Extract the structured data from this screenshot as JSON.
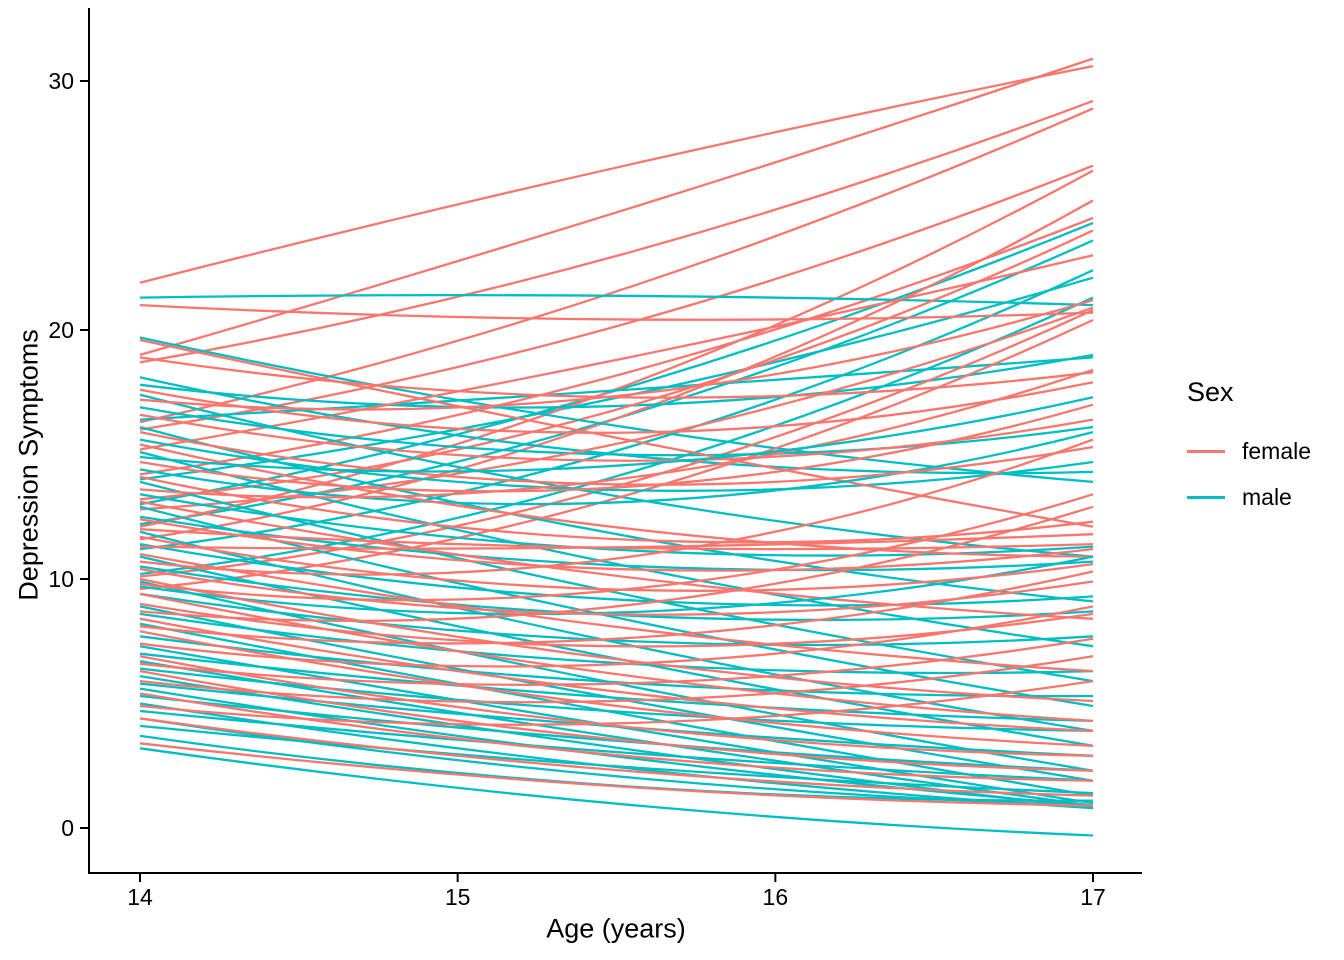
{
  "chart_data": {
    "type": "line",
    "title": "",
    "xlabel": "Age (years)",
    "ylabel": "Depression Symptoms",
    "x_ticks": [
      14,
      15,
      16,
      17
    ],
    "x_tick_labels": [
      "14",
      "15",
      "16",
      "17"
    ],
    "y_ticks": [
      0,
      10,
      20,
      30
    ],
    "y_tick_labels": [
      "0",
      "10",
      "20",
      "30"
    ],
    "xlim": [
      13.84,
      17.15
    ],
    "ylim": [
      -1.8,
      32.9
    ],
    "grid": false,
    "axis_color": "#000000",
    "legend": {
      "title": "Sex",
      "position": "right",
      "entries": [
        {
          "label": "female",
          "color": "#F8766D"
        },
        {
          "label": "male",
          "color": "#00BFC4"
        }
      ]
    },
    "line_format": "[value_at_age14, quadratic_control_at_age15.5, value_at_age17]",
    "series": [
      {
        "name": "female",
        "color": "#F8766D",
        "lines": [
          [
            21.9,
            26.8,
            30.6
          ],
          [
            19.0,
            24.5,
            30.9
          ],
          [
            18.7,
            22.0,
            29.2
          ],
          [
            16.3,
            20.5,
            28.9
          ],
          [
            16.0,
            19.0,
            26.6
          ],
          [
            12.1,
            16.0,
            26.4
          ],
          [
            11.6,
            14.5,
            25.2
          ],
          [
            14.2,
            17.0,
            24.5
          ],
          [
            13.2,
            15.0,
            24.0
          ],
          [
            15.2,
            18.5,
            23.0
          ],
          [
            10.1,
            12.0,
            20.8
          ],
          [
            9.6,
            11.5,
            20.4
          ],
          [
            12.8,
            14.0,
            20.9
          ],
          [
            21.0,
            20.0,
            20.7
          ],
          [
            19.6,
            15.5,
            12.1
          ],
          [
            18.9,
            16.0,
            18.3
          ],
          [
            17.6,
            14.0,
            17.9
          ],
          [
            17.2,
            15.5,
            21.2
          ],
          [
            16.6,
            13.0,
            16.4
          ],
          [
            15.9,
            12.0,
            15.3
          ],
          [
            15.4,
            11.0,
            10.9
          ],
          [
            14.7,
            11.5,
            17.0
          ],
          [
            14.1,
            10.0,
            12.3
          ],
          [
            13.6,
            12.0,
            18.4
          ],
          [
            13.1,
            9.5,
            8.4
          ],
          [
            12.4,
            9.0,
            11.2
          ],
          [
            12.0,
            10.8,
            11.4
          ],
          [
            11.7,
            8.0,
            10.6
          ],
          [
            11.3,
            11.0,
            11.8
          ],
          [
            11.0,
            7.5,
            6.3
          ],
          [
            10.7,
            8.5,
            15.6
          ],
          [
            10.4,
            7.0,
            9.9
          ],
          [
            10.0,
            6.0,
            5.1
          ],
          [
            9.8,
            7.5,
            13.4
          ],
          [
            9.4,
            5.5,
            4.3
          ],
          [
            9.0,
            5.8,
            8.6
          ],
          [
            8.7,
            7.0,
            12.9
          ],
          [
            8.4,
            4.8,
            3.9
          ],
          [
            8.1,
            6.0,
            10.3
          ],
          [
            7.9,
            4.2,
            3.3
          ],
          [
            7.4,
            5.0,
            8.9
          ],
          [
            6.9,
            3.3,
            2.9
          ],
          [
            6.6,
            4.5,
            7.6
          ],
          [
            6.3,
            2.8,
            2.3
          ],
          [
            5.9,
            3.8,
            6.9
          ],
          [
            5.4,
            2.2,
            1.9
          ],
          [
            4.9,
            3.0,
            5.9
          ],
          [
            4.4,
            1.8,
            1.3
          ],
          [
            3.4,
            1.2,
            0.9
          ]
        ]
      },
      {
        "name": "male",
        "color": "#00BFC4",
        "lines": [
          [
            13.0,
            16.5,
            24.3
          ],
          [
            12.2,
            15.0,
            23.6
          ],
          [
            11.2,
            13.5,
            22.4
          ],
          [
            10.2,
            12.5,
            21.3
          ],
          [
            14.0,
            16.5,
            22.1
          ],
          [
            16.4,
            17.5,
            18.9
          ],
          [
            17.8,
            15.5,
            19.0
          ],
          [
            21.3,
            21.6,
            21.0
          ],
          [
            19.7,
            15.5,
            13.9
          ],
          [
            18.1,
            13.8,
            14.3
          ],
          [
            17.4,
            12.5,
            10.9
          ],
          [
            16.9,
            13.5,
            16.1
          ],
          [
            16.1,
            11.0,
            9.1
          ],
          [
            15.6,
            12.0,
            14.7
          ],
          [
            15.1,
            10.0,
            7.3
          ],
          [
            14.4,
            11.0,
            15.9
          ],
          [
            13.9,
            9.0,
            5.9
          ],
          [
            13.4,
            10.0,
            11.3
          ],
          [
            12.9,
            8.0,
            4.9
          ],
          [
            12.5,
            9.5,
            10.7
          ],
          [
            11.9,
            7.0,
            3.9
          ],
          [
            11.4,
            8.0,
            9.3
          ],
          [
            10.9,
            6.5,
            3.3
          ],
          [
            10.5,
            7.5,
            8.7
          ],
          [
            9.9,
            5.5,
            2.3
          ],
          [
            9.7,
            7.0,
            10.9
          ],
          [
            9.4,
            6.5,
            7.7
          ],
          [
            8.9,
            5.0,
            1.9
          ],
          [
            8.6,
            5.8,
            6.3
          ],
          [
            8.2,
            4.5,
            1.3
          ],
          [
            7.7,
            5.2,
            5.3
          ],
          [
            7.3,
            4.0,
            1.0
          ],
          [
            7.0,
            4.8,
            4.3
          ],
          [
            6.7,
            3.5,
            0.9
          ],
          [
            6.4,
            4.2,
            3.9
          ],
          [
            6.1,
            3.0,
            0.8
          ],
          [
            5.8,
            3.8,
            2.9
          ],
          [
            5.6,
            2.5,
            0.9
          ],
          [
            5.3,
            3.2,
            2.3
          ],
          [
            5.0,
            2.0,
            0.8
          ],
          [
            4.7,
            2.8,
            1.9
          ],
          [
            4.4,
            1.5,
            0.9
          ],
          [
            4.1,
            2.2,
            1.4
          ],
          [
            3.7,
            1.0,
            1.1
          ],
          [
            3.2,
            0.5,
            -0.3
          ],
          [
            14.9,
            13.0,
            17.3
          ]
        ]
      }
    ]
  }
}
